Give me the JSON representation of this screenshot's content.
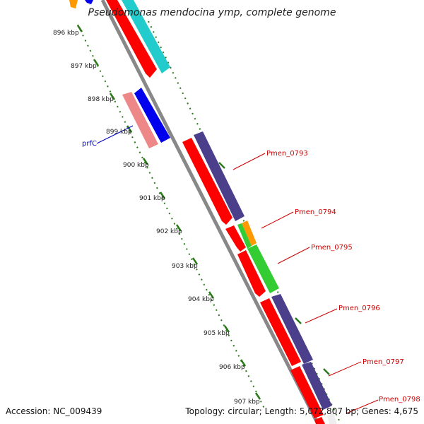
{
  "title": "Pseudomonas mendocina ymp, complete genome",
  "accession": "Accession: NC_009439",
  "summary": "Topology: circular; Length: 5,072,807 bp; Genes: 4,675",
  "ruler_labels": [
    "896 kbp",
    "897 kbp",
    "898 kbp",
    "899 kbp",
    "900 kbp",
    "901 kbp",
    "902 kbp",
    "903 kbp",
    "904 kbp",
    "905 kbp",
    "906 kbp",
    "907 kbp"
  ],
  "gene_labels": [
    {
      "text": "prfC",
      "color": "#0000cc"
    },
    {
      "text": "Pmen_0793",
      "color": "#cc0000"
    },
    {
      "text": "Pmen_0794",
      "color": "#cc0000"
    },
    {
      "text": "Pmen_0795",
      "color": "#cc0000"
    },
    {
      "text": "Pmen_0796",
      "color": "#cc0000"
    },
    {
      "text": "Pmen_0797",
      "color": "#cc0000"
    },
    {
      "text": "Pmen_0798",
      "color": "#cc0000"
    }
  ],
  "colors": {
    "cds_red": "#ff0000",
    "rna_cyan": "#22cccc",
    "blue": "#0000ee",
    "pink": "#ee8888",
    "purple": "#4b3f8c",
    "green": "#33cc33",
    "orange": "#ff9900",
    "ruler_green": "#2a7a1a",
    "backbone": "#888888"
  }
}
